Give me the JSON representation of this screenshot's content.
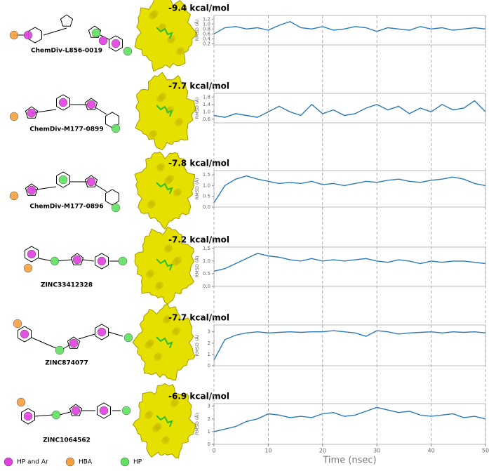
{
  "chart_data": [
    {
      "type": "line",
      "title": "-9.4 kcal/mol",
      "compound": "ChemDiv-L856-0019",
      "ylabel": "RMSD (Å)",
      "color": "#2a7ab8",
      "x": [
        0,
        2,
        4,
        6,
        8,
        10,
        12,
        14,
        16,
        18,
        20,
        22,
        24,
        26,
        28,
        30,
        32,
        34,
        36,
        38,
        40,
        42,
        44,
        46,
        48,
        50
      ],
      "values": [
        0.6,
        0.85,
        0.9,
        0.8,
        0.85,
        0.75,
        0.95,
        1.1,
        0.85,
        0.8,
        0.9,
        0.75,
        0.8,
        0.9,
        0.85,
        0.7,
        0.85,
        0.8,
        0.75,
        0.9,
        0.8,
        0.85,
        0.75,
        0.8,
        0.85,
        0.8
      ],
      "xlim": [
        0,
        50
      ],
      "ylim": [
        0.15,
        1.35
      ],
      "yticks": [
        0.2,
        0.4,
        0.6,
        0.8,
        {
          "value": 1,
          "label": "1.0"
        },
        1.2
      ]
    },
    {
      "type": "line",
      "title": "-7.7 kcal/mol",
      "compound": "ChemDiv-M177-0899",
      "ylabel": "RMSD (Å)",
      "color": "#2a7ab8",
      "x": [
        0,
        2,
        4,
        6,
        8,
        10,
        12,
        14,
        16,
        18,
        20,
        22,
        24,
        26,
        28,
        30,
        32,
        34,
        36,
        38,
        40,
        42,
        44,
        46,
        48,
        50
      ],
      "values": [
        0.8,
        0.7,
        0.9,
        0.8,
        0.7,
        1.0,
        1.3,
        1.0,
        0.8,
        1.4,
        0.9,
        1.1,
        0.8,
        0.9,
        1.2,
        1.4,
        1.1,
        1.3,
        0.9,
        1.2,
        1.0,
        1.4,
        1.1,
        1.2,
        1.6,
        1.0
      ],
      "xlim": [
        0,
        50
      ],
      "ylim": [
        0.4,
        2.0
      ],
      "yticks": [
        0.6,
        {
          "value": 1,
          "label": "1.0"
        },
        1.4,
        1.8
      ]
    },
    {
      "type": "line",
      "title": "-7.8 kcal/mol",
      "compound": "ChemDiv-M177-0896",
      "ylabel": "RMSD (Å)",
      "color": "#2a7ab8",
      "x": [
        0,
        2,
        4,
        6,
        8,
        10,
        12,
        14,
        16,
        18,
        20,
        22,
        24,
        26,
        28,
        30,
        32,
        34,
        36,
        38,
        40,
        42,
        44,
        46,
        48,
        50
      ],
      "values": [
        0.2,
        1.0,
        1.3,
        1.45,
        1.3,
        1.2,
        1.1,
        1.15,
        1.1,
        1.2,
        1.05,
        1.1,
        1.0,
        1.1,
        1.2,
        1.15,
        1.25,
        1.3,
        1.2,
        1.15,
        1.25,
        1.3,
        1.4,
        1.3,
        1.1,
        1.0
      ],
      "xlim": [
        0,
        50
      ],
      "ylim": [
        0,
        1.7
      ],
      "yticks": [
        {
          "value": 0,
          "label": "0.0"
        },
        0.5,
        {
          "value": 1,
          "label": "1.0"
        },
        1.5
      ]
    },
    {
      "type": "line",
      "title": "-7.2 kcal/mol",
      "compound": "ZINC33412328",
      "ylabel": "RMSD (Å)",
      "color": "#2a7ab8",
      "x": [
        0,
        2,
        4,
        6,
        8,
        10,
        12,
        14,
        16,
        18,
        20,
        22,
        24,
        26,
        28,
        30,
        32,
        34,
        36,
        38,
        40,
        42,
        44,
        46,
        48,
        50
      ],
      "values": [
        0.6,
        0.7,
        0.9,
        1.1,
        1.3,
        1.2,
        1.15,
        1.05,
        1.0,
        1.1,
        1.0,
        1.05,
        1.0,
        1.05,
        1.1,
        1.0,
        0.95,
        1.05,
        1.0,
        0.9,
        1.0,
        0.95,
        1.0,
        1.0,
        0.95,
        0.9
      ],
      "xlim": [
        0,
        50
      ],
      "ylim": [
        0,
        1.55
      ],
      "yticks": [
        {
          "value": 0,
          "label": "0.0"
        },
        0.5,
        {
          "value": 1,
          "label": "1.0"
        },
        1.5
      ]
    },
    {
      "type": "line",
      "title": "-7.7 kcal/mol",
      "compound": "ZINC874077",
      "ylabel": "RMSD (Å)",
      "color": "#2a7ab8",
      "x": [
        0,
        2,
        4,
        6,
        8,
        10,
        12,
        14,
        16,
        18,
        20,
        22,
        24,
        26,
        28,
        30,
        32,
        34,
        36,
        38,
        40,
        42,
        44,
        46,
        48,
        50
      ],
      "values": [
        0.5,
        2.3,
        2.7,
        2.9,
        3.0,
        2.9,
        2.95,
        3.0,
        2.95,
        3.0,
        3.0,
        3.1,
        3.0,
        2.9,
        2.6,
        3.1,
        3.0,
        2.8,
        2.9,
        2.95,
        3.0,
        2.9,
        3.0,
        2.95,
        3.0,
        2.9
      ],
      "xlim": [
        0,
        50
      ],
      "ylim": [
        0,
        3.6
      ],
      "yticks": [
        0,
        1,
        2,
        3
      ]
    },
    {
      "type": "line",
      "title": "-6.9 kcal/mol",
      "compound": "ZINC1064562",
      "ylabel": "RMSD (Å)",
      "color": "#2a7ab8",
      "x": [
        0,
        2,
        4,
        6,
        8,
        10,
        12,
        14,
        16,
        18,
        20,
        22,
        24,
        26,
        28,
        30,
        32,
        34,
        36,
        38,
        40,
        42,
        44,
        46,
        48,
        50
      ],
      "values": [
        1.0,
        1.2,
        1.4,
        1.8,
        2.0,
        2.4,
        2.3,
        2.1,
        2.2,
        2.1,
        2.4,
        2.5,
        2.2,
        2.3,
        2.6,
        2.9,
        2.7,
        2.5,
        2.6,
        2.3,
        2.2,
        2.3,
        2.4,
        2.1,
        2.2,
        2.0
      ],
      "xlim": [
        0,
        50
      ],
      "ylim": [
        0,
        3.2
      ],
      "yticks": [
        0,
        1,
        2,
        3
      ],
      "xticks": [
        0,
        10,
        20,
        30,
        40,
        50
      ],
      "xlabel": "Time (nsec)"
    }
  ],
  "legend": [
    {
      "name": "HP and Ar",
      "color": "#e040e0"
    },
    {
      "name": "HBA",
      "color": "#f5a040"
    },
    {
      "name": "HP",
      "color": "#60e060"
    }
  ]
}
